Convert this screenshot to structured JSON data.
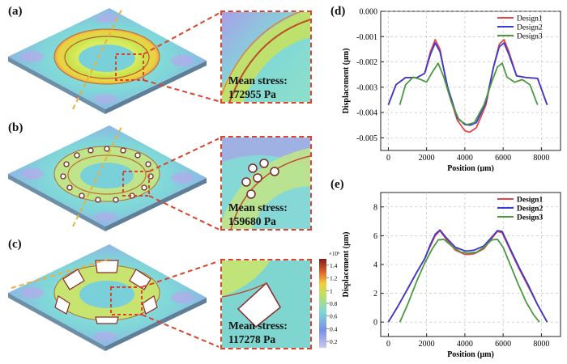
{
  "panels": {
    "a": {
      "label": "(a)",
      "stress_title": "Mean stress:",
      "stress_value": "172955 Pa"
    },
    "b": {
      "label": "(b)",
      "stress_title": "Mean stress:",
      "stress_value": "159680 Pa"
    },
    "c": {
      "label": "(c)",
      "stress_title": "Mean stress:",
      "stress_value": "117278 Pa"
    },
    "d": {
      "label": "(d)"
    },
    "e": {
      "label": "(e)"
    }
  },
  "colorbar": {
    "exponent": "×10⁶",
    "ticks": [
      "1.4",
      "1.2",
      "1",
      "0.8",
      "0.6",
      "0.4",
      "0.2"
    ],
    "tick_values": [
      1.4,
      1.2,
      1.0,
      0.8,
      0.6,
      0.4,
      0.2
    ],
    "range": [
      0.1,
      1.5
    ]
  },
  "colors": {
    "design1": "#e04848",
    "design2": "#3a3ad0",
    "design3": "#4a9a40",
    "dash": "#d9442e"
  },
  "chart_data": [
    {
      "type": "line",
      "panel": "d",
      "title": "",
      "xlabel": "Position (μm)",
      "ylabel": "Displacement (μm)",
      "xlim": [
        -400,
        9000
      ],
      "ylim": [
        -0.0055,
        0.0
      ],
      "xticks": [
        0,
        2000,
        4000,
        6000,
        8000
      ],
      "xtick_labels": [
        "0",
        "2000",
        "4000",
        "6000",
        "8000"
      ],
      "yticks": [
        0.0,
        -0.001,
        -0.002,
        -0.003,
        -0.004,
        -0.005
      ],
      "ytick_labels": [
        "0.000",
        "-0.001",
        "-0.002",
        "-0.003",
        "-0.004",
        "-0.005"
      ],
      "legend": "top-right",
      "series": [
        {
          "name": "Design1",
          "x": [
            0,
            400,
            900,
            1500,
            1900,
            2200,
            2450,
            2700,
            3100,
            3600,
            4000,
            4250,
            4600,
            5100,
            5500,
            5800,
            6050,
            6300,
            6700,
            7200,
            7800,
            8300
          ],
          "y": [
            -0.0037,
            -0.0029,
            -0.00262,
            -0.00262,
            -0.00245,
            -0.0016,
            -0.00112,
            -0.0015,
            -0.0031,
            -0.0043,
            -0.00472,
            -0.00478,
            -0.0046,
            -0.0037,
            -0.0022,
            -0.0013,
            -0.00112,
            -0.0016,
            -0.00255,
            -0.00262,
            -0.00265,
            -0.0037
          ]
        },
        {
          "name": "Design2",
          "x": [
            0,
            400,
            900,
            1500,
            1900,
            2200,
            2450,
            2700,
            3100,
            3600,
            4000,
            4300,
            4600,
            5100,
            5500,
            5800,
            6050,
            6300,
            6700,
            7200,
            7800,
            8300
          ],
          "y": [
            -0.0037,
            -0.0029,
            -0.00262,
            -0.00262,
            -0.00245,
            -0.0017,
            -0.00125,
            -0.0016,
            -0.003,
            -0.0042,
            -0.00448,
            -0.0045,
            -0.0044,
            -0.0036,
            -0.0022,
            -0.0014,
            -0.00125,
            -0.0017,
            -0.00255,
            -0.00262,
            -0.00265,
            -0.0037
          ]
        },
        {
          "name": "Design3",
          "x": [
            600,
            900,
            1300,
            1700,
            2000,
            2300,
            2600,
            2900,
            3300,
            3700,
            4100,
            4500,
            5000,
            5400,
            5700,
            5950,
            6200,
            6600,
            7000,
            7400,
            7800
          ],
          "y": [
            -0.0037,
            -0.0029,
            -0.0026,
            -0.0027,
            -0.0028,
            -0.0024,
            -0.00205,
            -0.0026,
            -0.0036,
            -0.0043,
            -0.00448,
            -0.0044,
            -0.0037,
            -0.0028,
            -0.0022,
            -0.00205,
            -0.0026,
            -0.0028,
            -0.0027,
            -0.0029,
            -0.0037
          ]
        }
      ]
    },
    {
      "type": "line",
      "panel": "e",
      "title": "",
      "xlabel": "Position (μm)",
      "ylabel": "Displacement (μm)",
      "xlim": [
        -400,
        9000
      ],
      "ylim": [
        -1,
        9
      ],
      "xticks": [
        0,
        2000,
        4000,
        6000,
        8000
      ],
      "xtick_labels": [
        "0",
        "2000",
        "4000",
        "6000",
        "8000"
      ],
      "yticks": [
        0,
        2,
        4,
        6,
        8
      ],
      "ytick_labels": [
        "0",
        "2",
        "4",
        "6",
        "8"
      ],
      "legend": "top-right",
      "series": [
        {
          "name": "Design1",
          "x": [
            0,
            500,
            1000,
            1500,
            1900,
            2200,
            2450,
            2700,
            3000,
            3500,
            4000,
            4200,
            4500,
            5000,
            5400,
            5700,
            5950,
            6300,
            6800,
            7300,
            7800,
            8300
          ],
          "y": [
            0,
            1.1,
            2.3,
            3.5,
            4.4,
            5.3,
            6.0,
            6.35,
            5.8,
            5.0,
            4.7,
            4.7,
            4.75,
            5.1,
            5.8,
            6.3,
            6.2,
            5.2,
            3.8,
            2.5,
            1.2,
            0
          ]
        },
        {
          "name": "Design2",
          "x": [
            0,
            500,
            1000,
            1500,
            1900,
            2200,
            2450,
            2700,
            3000,
            3500,
            4000,
            4200,
            4500,
            5000,
            5400,
            5700,
            5950,
            6300,
            6800,
            7300,
            7800,
            8300
          ],
          "y": [
            0,
            1.1,
            2.3,
            3.5,
            4.4,
            5.4,
            6.1,
            6.4,
            5.9,
            5.2,
            4.95,
            4.95,
            5.0,
            5.3,
            5.9,
            6.35,
            6.3,
            5.3,
            3.9,
            2.6,
            1.2,
            0
          ]
        },
        {
          "name": "Design3",
          "x": [
            600,
            1000,
            1500,
            1900,
            2300,
            2600,
            2900,
            3300,
            3800,
            4200,
            4600,
            5000,
            5400,
            5700,
            6000,
            6400,
            6800,
            7200,
            7600,
            7900
          ],
          "y": [
            0,
            1.2,
            2.9,
            4.1,
            5.1,
            5.7,
            5.75,
            5.3,
            4.85,
            4.8,
            4.85,
            5.2,
            5.7,
            5.75,
            5.2,
            3.9,
            2.6,
            1.4,
            0.5,
            0
          ]
        }
      ]
    }
  ]
}
